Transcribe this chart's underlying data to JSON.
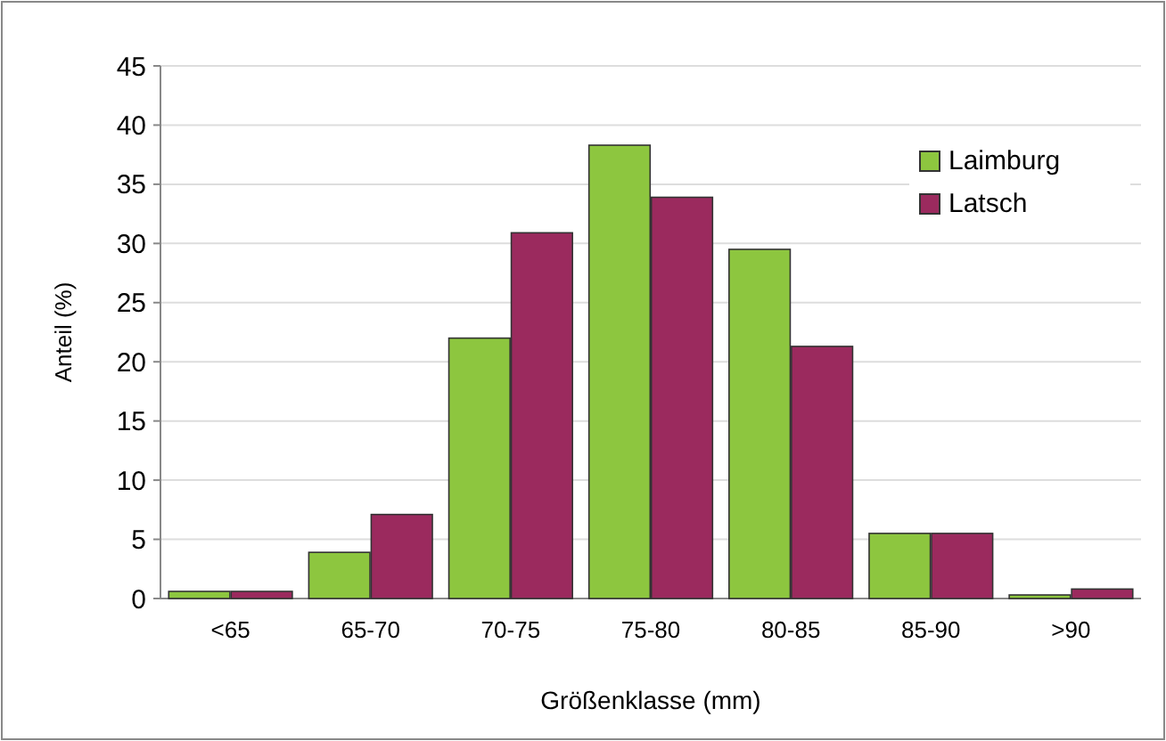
{
  "chart_data": {
    "type": "bar",
    "xlabel": "Größenklasse (mm)",
    "ylabel": "Anteil (%)",
    "categories": [
      "<65",
      "65-70",
      "70-75",
      "75-80",
      "80-85",
      "85-90",
      ">90"
    ],
    "series": [
      {
        "name": "Laimburg",
        "color": "#8dc63f",
        "values": [
          0.6,
          3.9,
          22,
          38.3,
          29.5,
          5.5,
          0.3
        ]
      },
      {
        "name": "Latsch",
        "color": "#9b2a5e",
        "values": [
          0.6,
          7.1,
          30.9,
          33.9,
          21.3,
          5.5,
          0.8
        ]
      }
    ],
    "ylim": [
      0,
      45
    ],
    "yticks": [
      0,
      5,
      10,
      15,
      20,
      25,
      30,
      35,
      40,
      45
    ],
    "grid": "y",
    "legend": "top right"
  }
}
